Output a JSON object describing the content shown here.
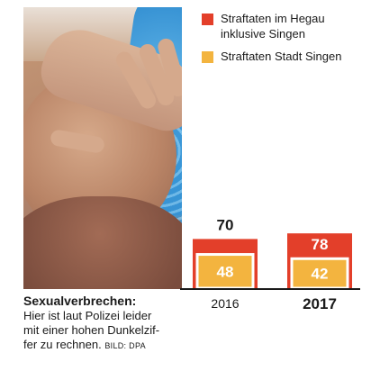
{
  "legend": {
    "items": [
      {
        "label_line1": "Straftaten im Hegau",
        "label_line2": "inklusive Singen",
        "color": "#e33f2a"
      },
      {
        "label_line1": "Straftaten Stadt Singen",
        "label_line2": "",
        "color": "#f3b43f"
      }
    ]
  },
  "caption": {
    "title": "Sexualverbrechen:",
    "line1": "Hier ist laut Polizei leider",
    "line2": "mit einer hohen Dunkelzif-",
    "line3": "fer zu rechnen.",
    "credit": "BILD: DPA"
  },
  "chart_data": {
    "type": "bar",
    "categories": [
      "2016",
      "2017"
    ],
    "series": [
      {
        "name": "Straftaten im Hegau inklusive Singen",
        "values": [
          70,
          78
        ],
        "color": "#e33f2a"
      },
      {
        "name": "Straftaten Stadt Singen",
        "values": [
          48,
          42
        ],
        "color": "#f3b43f"
      }
    ],
    "highlight_category": "2017",
    "ylim": [
      0,
      80
    ]
  }
}
